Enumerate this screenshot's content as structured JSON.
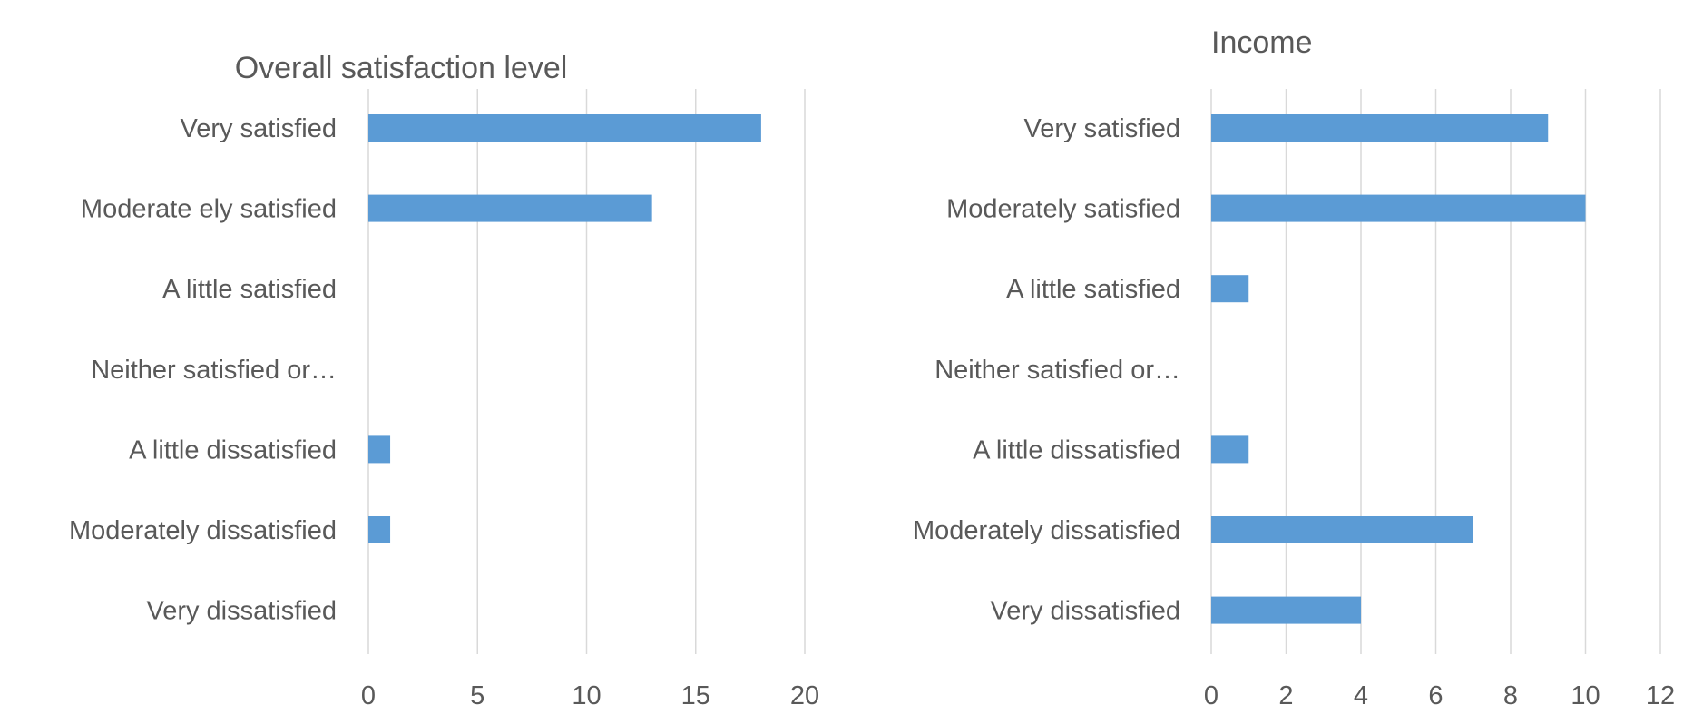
{
  "chart_data": [
    {
      "type": "bar",
      "orientation": "horizontal",
      "title": "Overall satisfaction level",
      "categories": [
        "Very satisfied",
        "Moderate ely satisfied",
        "A little satisfied",
        "Neither satisfied or…",
        "A little dissatisfied",
        "Moderately dissatisfied",
        "Very dissatisfied"
      ],
      "values": [
        18,
        13,
        0,
        0,
        1,
        1,
        0
      ],
      "xlabel": "",
      "ylabel": "",
      "xlim": [
        0,
        20
      ],
      "ticks": [
        0,
        5,
        10,
        15,
        20
      ],
      "grid": true,
      "bar_color": "#5b9bd5"
    },
    {
      "type": "bar",
      "orientation": "horizontal",
      "title": "Income",
      "categories": [
        "Very satisfied",
        "Moderately satisfied",
        "A little satisfied",
        "Neither satisfied or…",
        "A little dissatisfied",
        "Moderately dissatisfied",
        "Very dissatisfied"
      ],
      "values": [
        9,
        10,
        1,
        0,
        1,
        7,
        4
      ],
      "xlabel": "",
      "ylabel": "",
      "xlim": [
        0,
        12
      ],
      "ticks": [
        0,
        2,
        4,
        6,
        8,
        10,
        12
      ],
      "grid": true,
      "bar_color": "#5b9bd5"
    }
  ]
}
